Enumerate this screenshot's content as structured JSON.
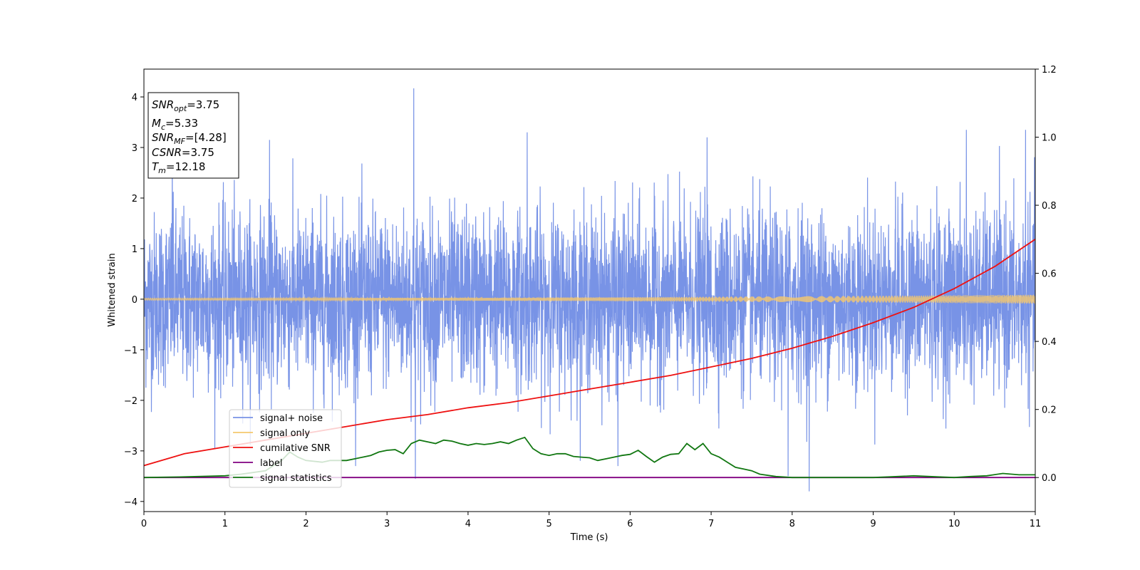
{
  "chart_data": {
    "type": "line",
    "xlabel": "Time (s)",
    "ylabel": "Whitened strain",
    "xlim": [
      0,
      11
    ],
    "ylim": [
      -4.2,
      4.55
    ],
    "y2lim": [
      -0.1,
      1.2
    ],
    "x_ticks": [
      "0",
      "1",
      "2",
      "3",
      "4",
      "5",
      "6",
      "7",
      "8",
      "9",
      "10",
      "11"
    ],
    "y_ticks": [
      "4",
      "3",
      "2",
      "1",
      "0",
      "−1",
      "−2",
      "−3",
      "−4"
    ],
    "y2_ticks": [
      "1.2",
      "1.0",
      "0.8",
      "0.6",
      "0.4",
      "0.2",
      "0.0"
    ],
    "info_box": [
      {
        "main": "SNR",
        "sub": "opt",
        "value": "=3.75"
      },
      {
        "main": "M",
        "sub": "c",
        "value": "=5.33"
      },
      {
        "main": "SNR",
        "sub": "MF",
        "value": "=[4.28]"
      },
      {
        "main": "CSNR",
        "sub": "",
        "value": "=3.75"
      },
      {
        "main": "T",
        "sub": "m",
        "value": "=12.18"
      }
    ],
    "legend_position": "lower-left",
    "series": [
      {
        "name": "signal+ noise",
        "color": "#7893e6",
        "axis": "left",
        "kind": "noise",
        "sigma": 0.85,
        "spikes": [
          [
            0.35,
            2.9
          ],
          [
            1.55,
            3.15
          ],
          [
            3.33,
            4.17
          ],
          [
            3.35,
            -3.55
          ],
          [
            4.73,
            3.3
          ],
          [
            6.95,
            3.2
          ],
          [
            8.21,
            -3.8
          ],
          [
            10.15,
            3.35
          ],
          [
            10.88,
            3.35
          ],
          [
            5.85,
            -3.3
          ],
          [
            7.95,
            -3.5
          ]
        ]
      },
      {
        "name": "signal only",
        "color": "#f5c86e",
        "axis": "left",
        "kind": "chirp",
        "amp_start": 0.02,
        "amp_end": 0.09
      },
      {
        "name": "cumilative SNR",
        "color": "#ee1111",
        "axis": "right",
        "kind": "line",
        "x": [
          0,
          0.5,
          1,
          1.5,
          2,
          2.5,
          3,
          3.5,
          4,
          4.5,
          5,
          5.5,
          6,
          6.5,
          7,
          7.5,
          8,
          8.5,
          9,
          9.5,
          10,
          10.5,
          11
        ],
        "y": [
          0.035,
          0.07,
          0.09,
          0.11,
          0.13,
          0.15,
          0.17,
          0.185,
          0.205,
          0.22,
          0.24,
          0.26,
          0.28,
          0.3,
          0.325,
          0.35,
          0.38,
          0.415,
          0.455,
          0.5,
          0.555,
          0.62,
          0.7
        ]
      },
      {
        "name": "label",
        "color": "#800080",
        "axis": "right",
        "kind": "line",
        "x": [
          0,
          11
        ],
        "y": [
          0.0,
          0.0
        ]
      },
      {
        "name": "signal statistics",
        "color": "#117711",
        "axis": "right",
        "kind": "line",
        "x": [
          0,
          0.5,
          1,
          1.2,
          1.5,
          1.7,
          1.8,
          1.9,
          2.0,
          2.2,
          2.3,
          2.5,
          2.6,
          2.7,
          2.8,
          2.9,
          3.0,
          3.1,
          3.2,
          3.3,
          3.4,
          3.5,
          3.6,
          3.7,
          3.8,
          3.9,
          4.0,
          4.1,
          4.2,
          4.3,
          4.4,
          4.5,
          4.6,
          4.7,
          4.8,
          4.9,
          5.0,
          5.1,
          5.2,
          5.3,
          5.4,
          5.5,
          5.6,
          5.7,
          5.8,
          5.9,
          6.0,
          6.1,
          6.2,
          6.3,
          6.4,
          6.5,
          6.6,
          6.7,
          6.8,
          6.9,
          7.0,
          7.1,
          7.2,
          7.3,
          7.4,
          7.5,
          7.6,
          7.8,
          8.0,
          8.5,
          9.0,
          9.2,
          9.5,
          9.8,
          10.0,
          10.2,
          10.4,
          10.6,
          10.8,
          11.0
        ],
        "y": [
          0.0,
          0.002,
          0.005,
          0.01,
          0.02,
          0.05,
          0.075,
          0.06,
          0.05,
          0.045,
          0.05,
          0.05,
          0.055,
          0.06,
          0.065,
          0.075,
          0.08,
          0.082,
          0.07,
          0.1,
          0.11,
          0.105,
          0.1,
          0.11,
          0.107,
          0.1,
          0.095,
          0.1,
          0.097,
          0.1,
          0.105,
          0.1,
          0.11,
          0.118,
          0.085,
          0.07,
          0.065,
          0.07,
          0.07,
          0.062,
          0.06,
          0.058,
          0.05,
          0.055,
          0.06,
          0.065,
          0.068,
          0.08,
          0.062,
          0.045,
          0.06,
          0.068,
          0.07,
          0.1,
          0.082,
          0.1,
          0.07,
          0.06,
          0.045,
          0.03,
          0.025,
          0.02,
          0.01,
          0.003,
          0.0,
          0.0,
          0.0,
          0.002,
          0.005,
          0.002,
          0.0,
          0.003,
          0.005,
          0.012,
          0.008,
          0.008
        ]
      }
    ]
  }
}
